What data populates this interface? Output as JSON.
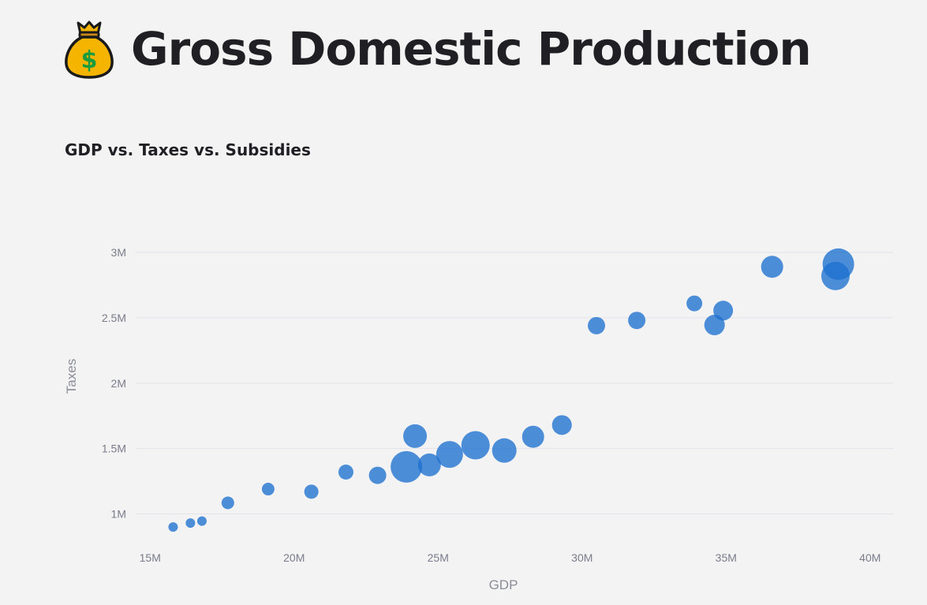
{
  "page": {
    "title": "Gross Domestic Production",
    "title_icon": "money-bag-icon"
  },
  "colors": {
    "background": "#f3f3f4",
    "marker": "#1c6fd0",
    "gridline": "#e2e3e8",
    "tick_text": "#7a7c8a"
  },
  "chart_data": {
    "type": "scatter",
    "title": "GDP vs. Taxes vs. Subsidies",
    "xlabel": "GDP",
    "ylabel": "Taxes",
    "size_encoding": "Subsidies",
    "xlim": [
      14500000,
      40800000
    ],
    "ylim": [
      780000,
      3350000
    ],
    "x_ticks": [
      15000000,
      20000000,
      25000000,
      30000000,
      35000000,
      40000000
    ],
    "x_tick_labels": [
      "15M",
      "20M",
      "25M",
      "30M",
      "35M",
      "40M"
    ],
    "y_ticks": [
      1000000,
      1500000,
      2000000,
      2500000,
      3000000
    ],
    "y_tick_labels": [
      "1M",
      "1.5M",
      "2M",
      "2.5M",
      "3M"
    ],
    "grid": "horizontal",
    "legend": "none",
    "points": [
      {
        "x": 15800000,
        "y": 900000,
        "size": 6
      },
      {
        "x": 16400000,
        "y": 930000,
        "size": 6
      },
      {
        "x": 16800000,
        "y": 945000,
        "size": 6
      },
      {
        "x": 17700000,
        "y": 1085000,
        "size": 8
      },
      {
        "x": 19100000,
        "y": 1190000,
        "size": 8
      },
      {
        "x": 20600000,
        "y": 1170000,
        "size": 9
      },
      {
        "x": 21800000,
        "y": 1320000,
        "size": 9.5
      },
      {
        "x": 22900000,
        "y": 1295000,
        "size": 11
      },
      {
        "x": 23900000,
        "y": 1360000,
        "size": 20
      },
      {
        "x": 24200000,
        "y": 1595000,
        "size": 15
      },
      {
        "x": 24700000,
        "y": 1375000,
        "size": 14.5
      },
      {
        "x": 25400000,
        "y": 1455000,
        "size": 17
      },
      {
        "x": 26300000,
        "y": 1525000,
        "size": 18
      },
      {
        "x": 27300000,
        "y": 1485000,
        "size": 15.5
      },
      {
        "x": 28300000,
        "y": 1590000,
        "size": 14
      },
      {
        "x": 29300000,
        "y": 1680000,
        "size": 12.5
      },
      {
        "x": 30500000,
        "y": 2440000,
        "size": 11
      },
      {
        "x": 31900000,
        "y": 2480000,
        "size": 11
      },
      {
        "x": 33900000,
        "y": 2610000,
        "size": 10
      },
      {
        "x": 34600000,
        "y": 2445000,
        "size": 13
      },
      {
        "x": 34900000,
        "y": 2555000,
        "size": 12.5
      },
      {
        "x": 36600000,
        "y": 2890000,
        "size": 14
      },
      {
        "x": 38800000,
        "y": 2820000,
        "size": 18
      },
      {
        "x": 38900000,
        "y": 2910000,
        "size": 20
      }
    ]
  }
}
